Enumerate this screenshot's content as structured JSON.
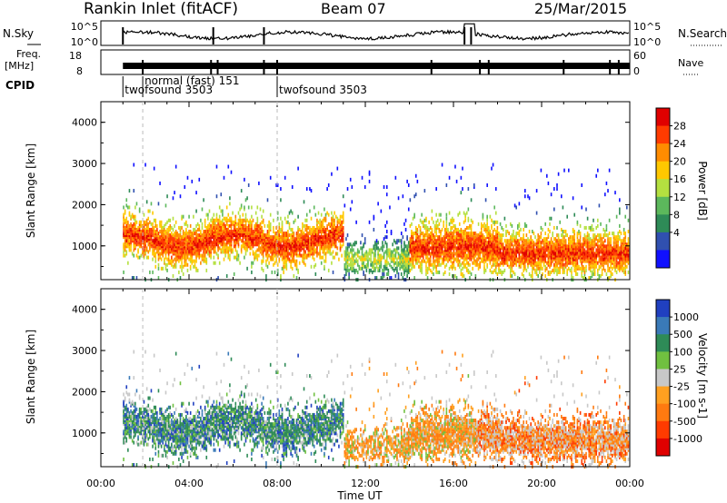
{
  "header": {
    "title": "Rankin Inlet (fitACF)",
    "beam": "Beam 07",
    "date": "25/Mar/2015"
  },
  "top_panels": {
    "nsky_label": "N.Sky",
    "nsearch_label": "N.Search",
    "nsky_ticks": [
      "10^5",
      "10^0"
    ],
    "nsearch_ticks": [
      "10^5",
      "10^0"
    ],
    "freq_label": "Freq.",
    "freq_unit": "[MHz]",
    "freq_ticks": [
      "18",
      "8"
    ],
    "nave_label": "Nave",
    "nave_ticks": [
      "60",
      "0"
    ],
    "cpid_label": "CPID",
    "cpid_segments": [
      {
        "label": "twofsound 3503",
        "start_hour": 1.0
      },
      {
        "label": "normal (fast) 151",
        "start_hour": 1.9
      },
      {
        "label": "twofsound 3503",
        "start_hour": 8.0
      }
    ]
  },
  "chart_data": [
    {
      "type": "heatmap",
      "name": "power",
      "ylabel": "Slant Range [km]",
      "xlabel": "",
      "xlim": [
        0,
        24
      ],
      "ylim": [
        180,
        4500
      ],
      "yticks": [
        "1000",
        "2000",
        "3000",
        "4000"
      ],
      "colorbar": {
        "label": "Power [dB]",
        "ticks": [
          "28",
          "24",
          "20",
          "16",
          "12",
          "8",
          "4"
        ],
        "colors": [
          "#e00000",
          "#ff3b00",
          "#ff8c00",
          "#ffc800",
          "#b4e040",
          "#5cb85c",
          "#2e8b57",
          "#3050b0",
          "#1010ff"
        ]
      }
    },
    {
      "type": "heatmap",
      "name": "velocity",
      "ylabel": "Slant Range [km]",
      "xlabel": "Time UT",
      "xlim": [
        0,
        24
      ],
      "ylim": [
        180,
        4500
      ],
      "yticks": [
        "1000",
        "2000",
        "3000",
        "4000"
      ],
      "xticks": [
        "00:00",
        "04:00",
        "08:00",
        "12:00",
        "16:00",
        "20:00",
        "00:00"
      ],
      "colorbar": {
        "label": "Velocity [m s-1]",
        "ticks": [
          "1000",
          "500",
          "100",
          "25",
          "-25",
          "-100",
          "-500",
          "-1000"
        ],
        "colors": [
          "#2040c0",
          "#3a7ab8",
          "#2e8b57",
          "#70c040",
          "#c8c8c8",
          "#ffa020",
          "#ff7a10",
          "#ff3b00",
          "#e00000"
        ]
      }
    }
  ]
}
